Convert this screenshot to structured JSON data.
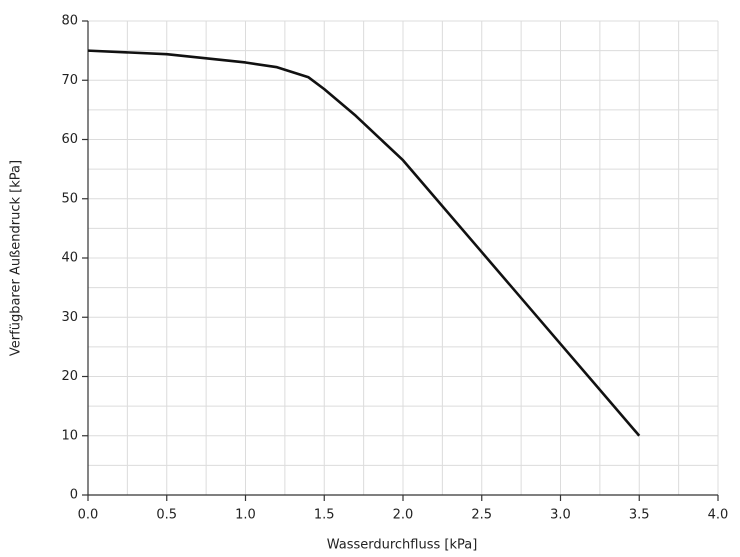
{
  "chart_data": {
    "type": "line",
    "xlabel": "Wasserdurchfluss [kPa]",
    "ylabel": "Verfügbarer Außendruck [kPa]",
    "x": [
      0,
      0.5,
      1.0,
      1.2,
      1.4,
      1.5,
      1.7,
      2.0,
      2.5,
      3.0,
      3.5
    ],
    "series": [
      {
        "color": "#111111",
        "values": [
          75,
          74.4,
          73,
          72.2,
          70.5,
          68.5,
          64,
          56.5,
          41,
          25.5,
          10
        ]
      }
    ],
    "xlim": [
      0,
      4
    ],
    "ylim": [
      0,
      80
    ],
    "xticks": [
      {
        "value": 0,
        "label": "0.0"
      },
      0.5,
      {
        "value": 1,
        "label": "1.0"
      },
      1.5,
      {
        "value": 2,
        "label": "2.0"
      },
      2.5,
      {
        "value": 3,
        "label": "3.0"
      },
      3.5,
      {
        "value": 4,
        "label": "4.0"
      }
    ],
    "yticks": [
      0,
      10,
      20,
      30,
      40,
      50,
      60,
      70,
      80
    ],
    "minor_xticks": [
      0.25,
      0.75,
      1.25,
      1.75,
      2.25,
      2.75,
      3.25,
      3.75
    ],
    "minor_yticks": [
      5,
      15,
      25,
      35,
      45,
      55,
      65,
      75
    ],
    "grid": true
  }
}
